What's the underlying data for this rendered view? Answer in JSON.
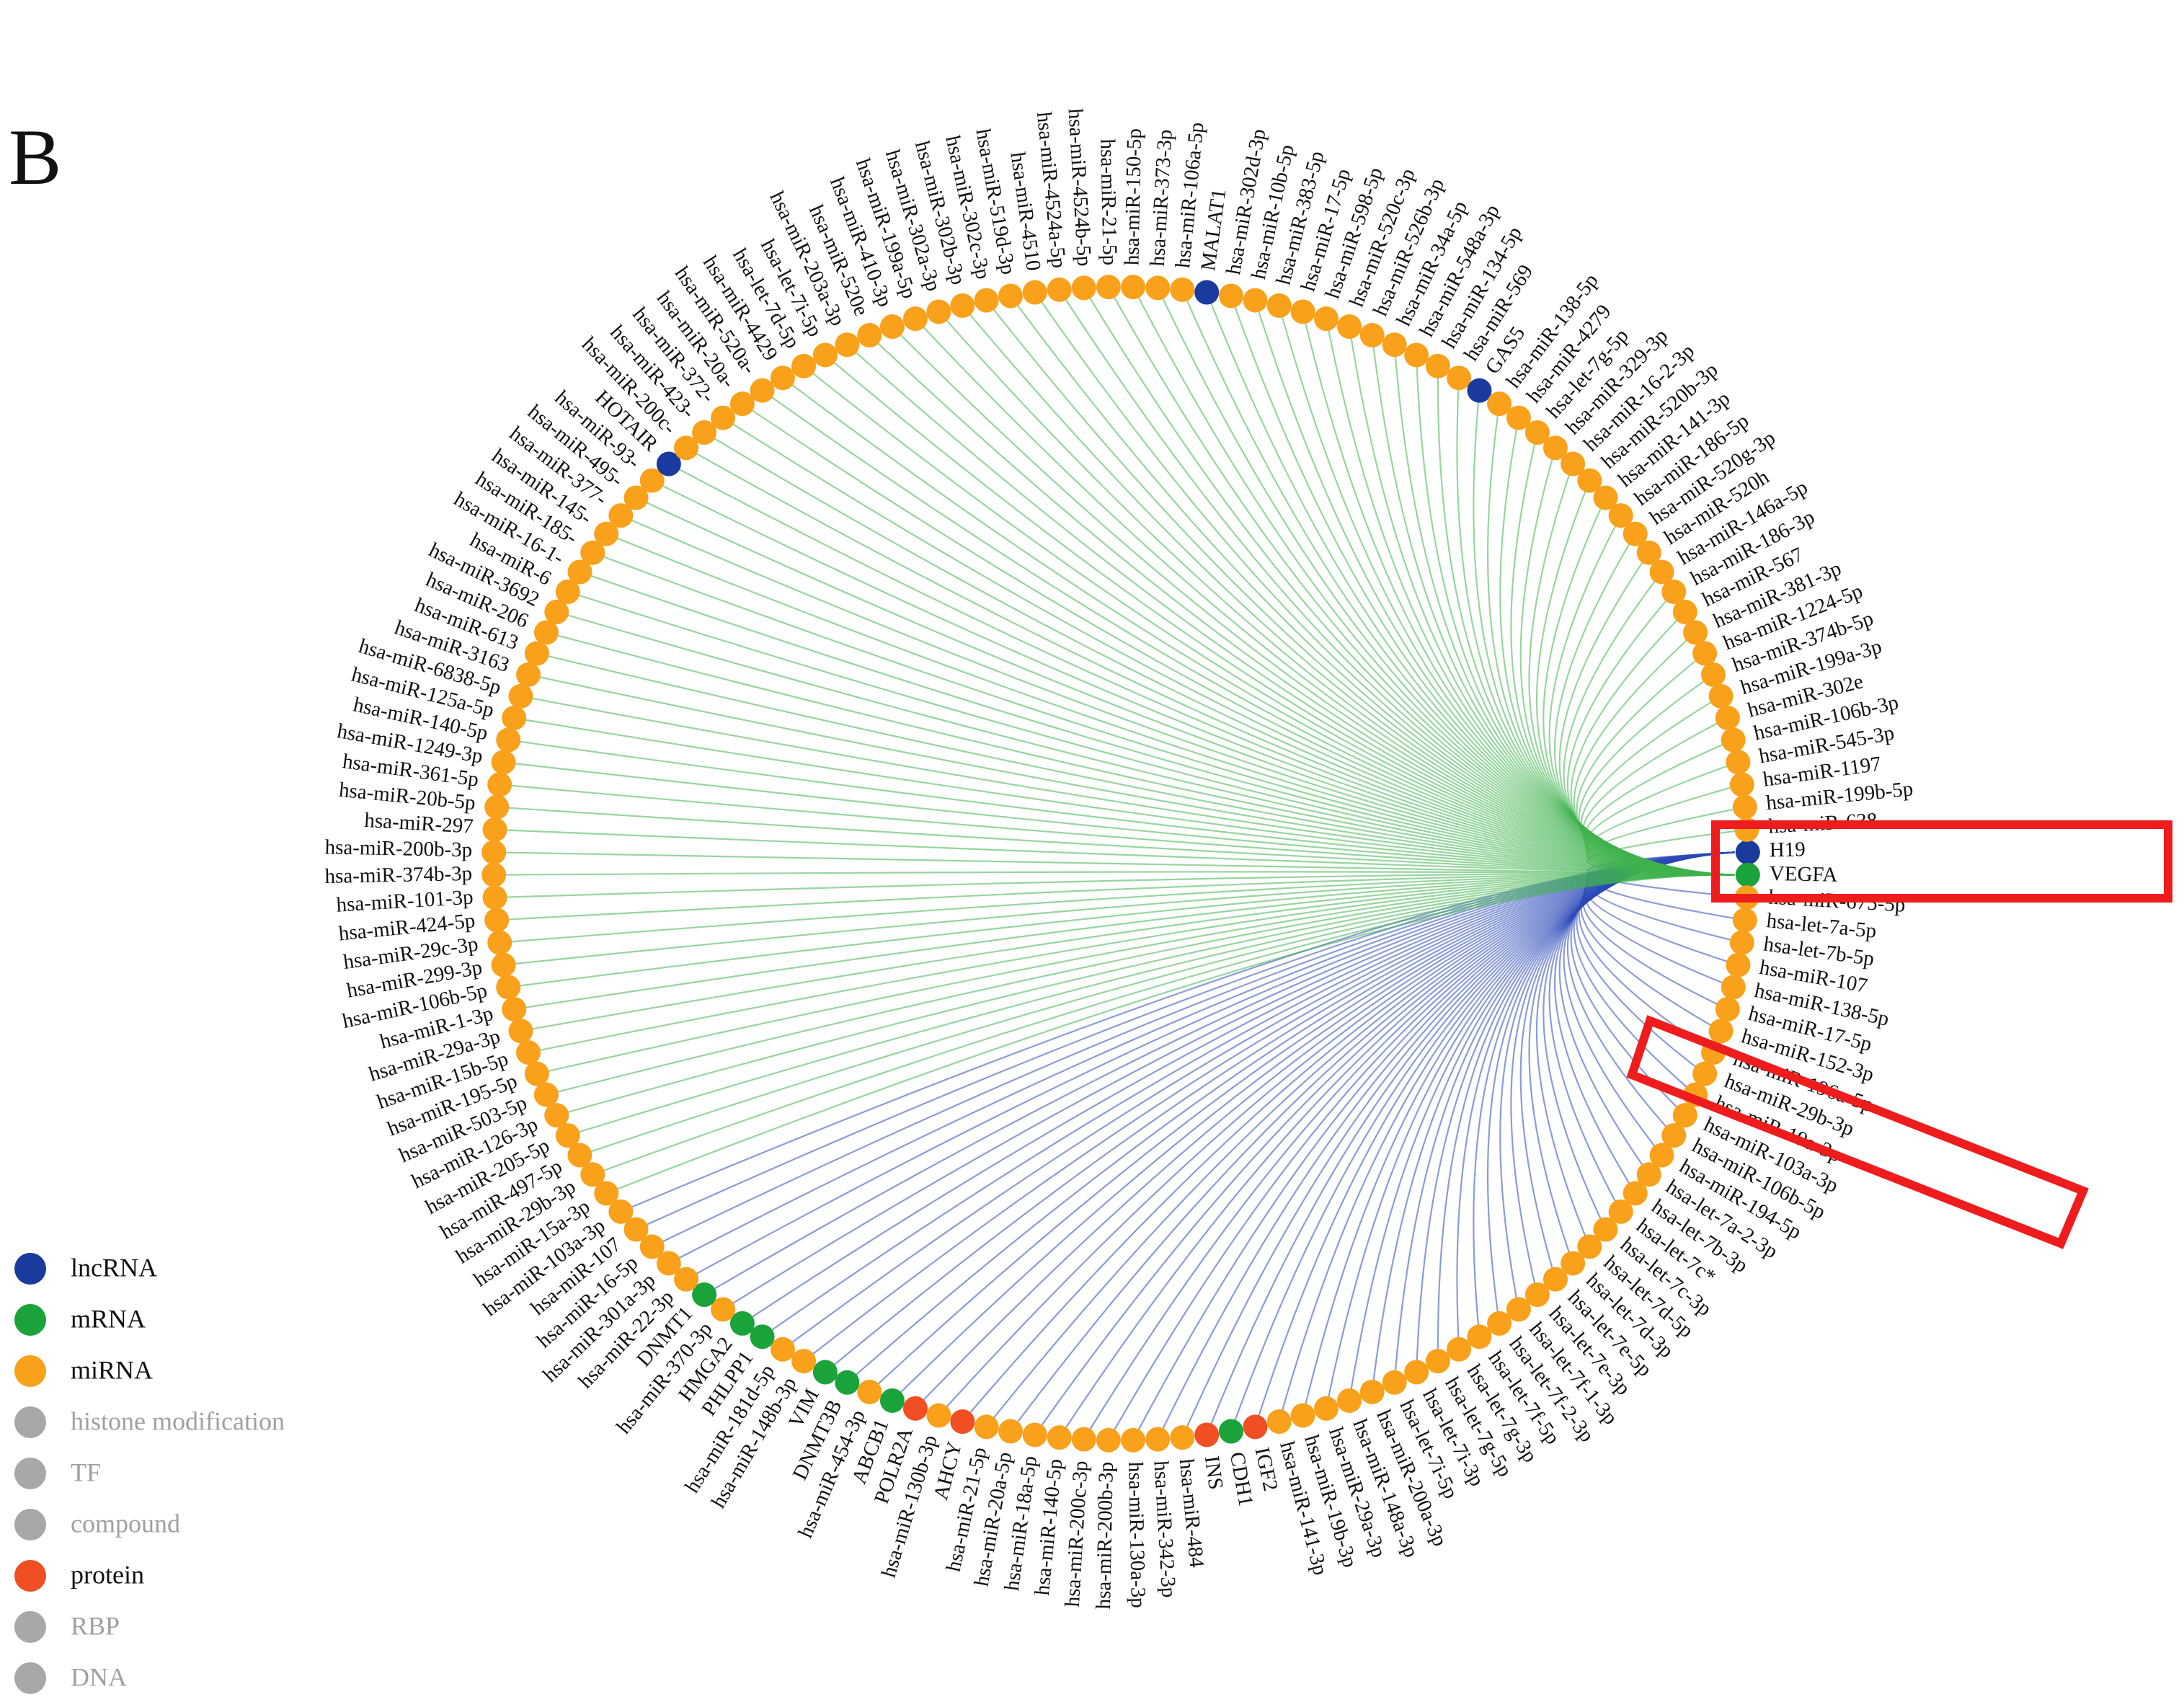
{
  "title": "B",
  "nodes": [
    {
      "label": "H19",
      "color": "#1a3a9e"
    },
    {
      "label": "VEGFA",
      "color": "#1aa33a"
    },
    {
      "label": "hsa-miR-675-5p",
      "color": "#f9a11b"
    },
    {
      "label": "hsa-let-7a-5p",
      "color": "#f9a11b"
    },
    {
      "label": "hsa-let-7b-5p",
      "color": "#f9a11b"
    },
    {
      "label": "hsa-miR-107",
      "color": "#f9a11b"
    },
    {
      "label": "hsa-miR-138-5p",
      "color": "#f9a11b"
    },
    {
      "label": "hsa-miR-17-5p",
      "color": "#f9a11b"
    },
    {
      "label": "hsa-miR-152-3p",
      "color": "#f9a11b"
    },
    {
      "label": "hsa-miR-196a-5p",
      "color": "#f9a11b"
    },
    {
      "label": "hsa-miR-29b-3p",
      "color": "#f9a11b"
    },
    {
      "label": "hsa-miR-19a-3p",
      "color": "#f9a11b"
    },
    {
      "label": "hsa-miR-103a-3p",
      "color": "#f9a11b"
    },
    {
      "label": "hsa-miR-106b-5p",
      "color": "#f9a11b"
    },
    {
      "label": "hsa-miR-194-5p",
      "color": "#f9a11b"
    },
    {
      "label": "hsa-let-7a-2-3p",
      "color": "#f9a11b"
    },
    {
      "label": "hsa-let-7b-3p",
      "color": "#f9a11b"
    },
    {
      "label": "hsa-let-7c*",
      "color": "#f9a11b"
    },
    {
      "label": "hsa-let-7c-3p",
      "color": "#f9a11b"
    },
    {
      "label": "hsa-let-7d-5p",
      "color": "#f9a11b"
    },
    {
      "label": "hsa-let-7d-3p",
      "color": "#f9a11b"
    },
    {
      "label": "hsa-let-7e-5p",
      "color": "#f9a11b"
    },
    {
      "label": "hsa-let-7e-3p",
      "color": "#f9a11b"
    },
    {
      "label": "hsa-let-7f-1-3p",
      "color": "#f9a11b"
    },
    {
      "label": "hsa-let-7f-2-3p",
      "color": "#f9a11b"
    },
    {
      "label": "hsa-let-7f-5p",
      "color": "#f9a11b"
    },
    {
      "label": "hsa-let-7g-3p",
      "color": "#f9a11b"
    },
    {
      "label": "hsa-let-7g-5p",
      "color": "#f9a11b"
    },
    {
      "label": "hsa-let-7i-3p",
      "color": "#f9a11b"
    },
    {
      "label": "hsa-let-7i-5p",
      "color": "#f9a11b"
    },
    {
      "label": "hsa-miR-200a-3p",
      "color": "#f9a11b"
    },
    {
      "label": "hsa-miR-148a-3p",
      "color": "#f9a11b"
    },
    {
      "label": "hsa-miR-29a-3p",
      "color": "#f9a11b"
    },
    {
      "label": "hsa-miR-19b-3p",
      "color": "#f9a11b"
    },
    {
      "label": "hsa-miR-141-3p",
      "color": "#f9a11b"
    },
    {
      "label": "IGF2",
      "color": "#f04e23"
    },
    {
      "label": "CDH1",
      "color": "#1aa33a"
    },
    {
      "label": "INS",
      "color": "#f04e23"
    },
    {
      "label": "hsa-miR-484",
      "color": "#f9a11b"
    },
    {
      "label": "hsa-miR-342-3p",
      "color": "#f9a11b"
    },
    {
      "label": "hsa-miR-130a-3p",
      "color": "#f9a11b"
    },
    {
      "label": "hsa-miR-200b-3p",
      "color": "#f9a11b"
    },
    {
      "label": "hsa-miR-200c-3p",
      "color": "#f9a11b"
    },
    {
      "label": "hsa-miR-140-5p",
      "color": "#f9a11b"
    },
    {
      "label": "hsa-miR-18a-5p",
      "color": "#f9a11b"
    },
    {
      "label": "hsa-miR-20a-5p",
      "color": "#f9a11b"
    },
    {
      "label": "hsa-miR-21-5p",
      "color": "#f9a11b"
    },
    {
      "label": "AHCY",
      "color": "#f04e23"
    },
    {
      "label": "hsa-miR-130b-3p",
      "color": "#f9a11b"
    },
    {
      "label": "POLR2A",
      "color": "#f04e23"
    },
    {
      "label": "ABCB1",
      "color": "#1aa33a"
    },
    {
      "label": "hsa-miR-454-3p",
      "color": "#f9a11b"
    },
    {
      "label": "DNMT3B",
      "color": "#1aa33a"
    },
    {
      "label": "VIM",
      "color": "#1aa33a"
    },
    {
      "label": "hsa-miR-148b-3p",
      "color": "#f9a11b"
    },
    {
      "label": "hsa-miR-181d-5p",
      "color": "#f9a11b"
    },
    {
      "label": "PHLPP1",
      "color": "#1aa33a"
    },
    {
      "label": "HMGA2",
      "color": "#1aa33a"
    },
    {
      "label": "hsa-miR-370-3p",
      "color": "#f9a11b"
    },
    {
      "label": "DNMT1",
      "color": "#1aa33a"
    },
    {
      "label": "hsa-miR-22-3p",
      "color": "#f9a11b"
    },
    {
      "label": "hsa-miR-301a-3p",
      "color": "#f9a11b"
    },
    {
      "label": "hsa-miR-16-5p",
      "color": "#f9a11b"
    },
    {
      "label": "hsa-miR-107",
      "color": "#f9a11b"
    },
    {
      "label": "hsa-miR-103a-3p",
      "color": "#f9a11b"
    },
    {
      "label": "hsa-miR-15a-3p",
      "color": "#f9a11b"
    },
    {
      "label": "hsa-miR-29b-3p",
      "color": "#f9a11b"
    },
    {
      "label": "hsa-miR-497-5p",
      "color": "#f9a11b"
    },
    {
      "label": "hsa-miR-205-5p",
      "color": "#f9a11b"
    },
    {
      "label": "hsa-miR-126-3p",
      "color": "#f9a11b"
    },
    {
      "label": "hsa-miR-503-5p",
      "color": "#f9a11b"
    },
    {
      "label": "hsa-miR-195-5p",
      "color": "#f9a11b"
    },
    {
      "label": "hsa-miR-15b-5p",
      "color": "#f9a11b"
    },
    {
      "label": "hsa-miR-29a-3p",
      "color": "#f9a11b"
    },
    {
      "label": "hsa-miR-1-3p",
      "color": "#f9a11b"
    },
    {
      "label": "hsa-miR-106b-5p",
      "color": "#f9a11b"
    },
    {
      "label": "hsa-miR-299-3p",
      "color": "#f9a11b"
    },
    {
      "label": "hsa-miR-29c-3p",
      "color": "#f9a11b"
    },
    {
      "label": "hsa-miR-424-5p",
      "color": "#f9a11b"
    },
    {
      "label": "hsa-miR-101-3p",
      "color": "#f9a11b"
    },
    {
      "label": "hsa-miR-374b-3p",
      "color": "#f9a11b"
    },
    {
      "label": "hsa-miR-200b-3p",
      "color": "#f9a11b"
    },
    {
      "label": "hsa-miR-297",
      "color": "#f9a11b"
    },
    {
      "label": "hsa-miR-20b-5p",
      "color": "#f9a11b"
    },
    {
      "label": "hsa-miR-361-5p",
      "color": "#f9a11b"
    },
    {
      "label": "hsa-miR-1249-3p",
      "color": "#f9a11b"
    },
    {
      "label": "hsa-miR-140-5p",
      "color": "#f9a11b"
    },
    {
      "label": "hsa-miR-125a-5p",
      "color": "#f9a11b"
    },
    {
      "label": "hsa-miR-6838-5p",
      "color": "#f9a11b"
    },
    {
      "label": "hsa-miR-3163",
      "color": "#f9a11b"
    },
    {
      "label": "hsa-miR-613",
      "color": "#f9a11b"
    },
    {
      "label": "hsa-miR-206",
      "color": "#f9a11b"
    },
    {
      "label": "hsa-miR-3692",
      "color": "#f9a11b"
    },
    {
      "label": "hsa-miR-6",
      "color": "#f9a11b"
    },
    {
      "label": "hsa-miR-16-1-",
      "color": "#f9a11b"
    },
    {
      "label": "hsa-miR-185-",
      "color": "#f9a11b"
    },
    {
      "label": "hsa-miR-145-",
      "color": "#f9a11b"
    },
    {
      "label": "hsa-miR-377-",
      "color": "#f9a11b"
    },
    {
      "label": "hsa-miR-495-",
      "color": "#f9a11b"
    },
    {
      "label": "hsa-miR-93-",
      "color": "#f9a11b"
    },
    {
      "label": "HOTAIR",
      "color": "#1a3a9e"
    },
    {
      "label": "hsa-miR-200c-",
      "color": "#f9a11b"
    },
    {
      "label": "hsa-miR-423-",
      "color": "#f9a11b"
    },
    {
      "label": "hsa-miR-372-",
      "color": "#f9a11b"
    },
    {
      "label": "hsa-miR-20a-",
      "color": "#f9a11b"
    },
    {
      "label": "hsa-miR-520a-",
      "color": "#f9a11b"
    },
    {
      "label": "hsa-miR-4429",
      "color": "#f9a11b"
    },
    {
      "label": "hsa-let-7d-5p",
      "color": "#f9a11b"
    },
    {
      "label": "hsa-let-7i-5p",
      "color": "#f9a11b"
    },
    {
      "label": "hsa-miR-203a-3p",
      "color": "#f9a11b"
    },
    {
      "label": "hsa-miR-520e",
      "color": "#f9a11b"
    },
    {
      "label": "hsa-miR-410-3p",
      "color": "#f9a11b"
    },
    {
      "label": "hsa-miR-199a-5p",
      "color": "#f9a11b"
    },
    {
      "label": "hsa-miR-302a-3p",
      "color": "#f9a11b"
    },
    {
      "label": "hsa-miR-302b-3p",
      "color": "#f9a11b"
    },
    {
      "label": "hsa-miR-302c-3p",
      "color": "#f9a11b"
    },
    {
      "label": "hsa-miR-519d-3p",
      "color": "#f9a11b"
    },
    {
      "label": "hsa-miR-4510",
      "color": "#f9a11b"
    },
    {
      "label": "hsa-miR-4524a-5p",
      "color": "#f9a11b"
    },
    {
      "label": "hsa-miR-4524b-5p",
      "color": "#f9a11b"
    },
    {
      "label": "hsa-miR-21-5p",
      "color": "#f9a11b"
    },
    {
      "label": "hsa-miR-150-5p",
      "color": "#f9a11b"
    },
    {
      "label": "hsa-miR-373-3p",
      "color": "#f9a11b"
    },
    {
      "label": "hsa-miR-106a-5p",
      "color": "#f9a11b"
    },
    {
      "label": "MALAT1",
      "color": "#1a3a9e"
    },
    {
      "label": "hsa-miR-302d-3p",
      "color": "#f9a11b"
    },
    {
      "label": "hsa-miR-10b-5p",
      "color": "#f9a11b"
    },
    {
      "label": "hsa-miR-383-5p",
      "color": "#f9a11b"
    },
    {
      "label": "hsa-miR-17-5p",
      "color": "#f9a11b"
    },
    {
      "label": "hsa-miR-598-5p",
      "color": "#f9a11b"
    },
    {
      "label": "hsa-miR-520c-3p",
      "color": "#f9a11b"
    },
    {
      "label": "hsa-miR-526b-3p",
      "color": "#f9a11b"
    },
    {
      "label": "hsa-miR-34a-5p",
      "color": "#f9a11b"
    },
    {
      "label": "hsa-miR-548a-3p",
      "color": "#f9a11b"
    },
    {
      "label": "hsa-miR-134-5p",
      "color": "#f9a11b"
    },
    {
      "label": "hsa-miR-569",
      "color": "#f9a11b"
    },
    {
      "label": "GAS5",
      "color": "#1a3a9e"
    },
    {
      "label": "hsa-miR-138-5p",
      "color": "#f9a11b"
    },
    {
      "label": "hsa-miR-4279",
      "color": "#f9a11b"
    },
    {
      "label": "hsa-let-7g-5p",
      "color": "#f9a11b"
    },
    {
      "label": "hsa-miR-329-3p",
      "color": "#f9a11b"
    },
    {
      "label": "hsa-miR-16-2-3p",
      "color": "#f9a11b"
    },
    {
      "label": "hsa-miR-520b-3p",
      "color": "#f9a11b"
    },
    {
      "label": "hsa-miR-141-3p",
      "color": "#f9a11b"
    },
    {
      "label": "hsa-miR-186-5p",
      "color": "#f9a11b"
    },
    {
      "label": "hsa-miR-520g-3p",
      "color": "#f9a11b"
    },
    {
      "label": "hsa-miR-520h",
      "color": "#f9a11b"
    },
    {
      "label": "hsa-miR-146a-5p",
      "color": "#f9a11b"
    },
    {
      "label": "hsa-miR-186-3p",
      "color": "#f9a11b"
    },
    {
      "label": "hsa-miR-567",
      "color": "#f9a11b"
    },
    {
      "label": "hsa-miR-381-3p",
      "color": "#f9a11b"
    },
    {
      "label": "hsa-miR-1224-5p",
      "color": "#f9a11b"
    },
    {
      "label": "hsa-miR-374b-5p",
      "color": "#f9a11b"
    },
    {
      "label": "hsa-miR-199a-3p",
      "color": "#f9a11b"
    },
    {
      "label": "hsa-miR-302e",
      "color": "#f9a11b"
    },
    {
      "label": "hsa-miR-106b-3p",
      "color": "#f9a11b"
    },
    {
      "label": "hsa-miR-545-3p",
      "color": "#f9a11b"
    },
    {
      "label": "hsa-miR-1197",
      "color": "#f9a11b"
    },
    {
      "label": "hsa-miR-199b-5p",
      "color": "#f9a11b"
    },
    {
      "label": "hsa-miR-638",
      "color": "#f9a11b"
    }
  ],
  "legend": [
    {
      "label": "lncRNA",
      "color": "#1a3a9e",
      "active": true
    },
    {
      "label": "mRNA",
      "color": "#1aa33a",
      "active": true
    },
    {
      "label": "miRNA",
      "color": "#f9a11b",
      "active": true
    },
    {
      "label": "histone modification",
      "color": "#a8a8a8",
      "active": false
    },
    {
      "label": "TF",
      "color": "#a8a8a8",
      "active": false
    },
    {
      "label": "compound",
      "color": "#a8a8a8",
      "active": false
    },
    {
      "label": "protein",
      "color": "#f04e23",
      "active": true
    },
    {
      "label": "RBP",
      "color": "#a8a8a8",
      "active": false
    },
    {
      "label": "DNA",
      "color": "#a8a8a8",
      "active": false
    }
  ]
}
